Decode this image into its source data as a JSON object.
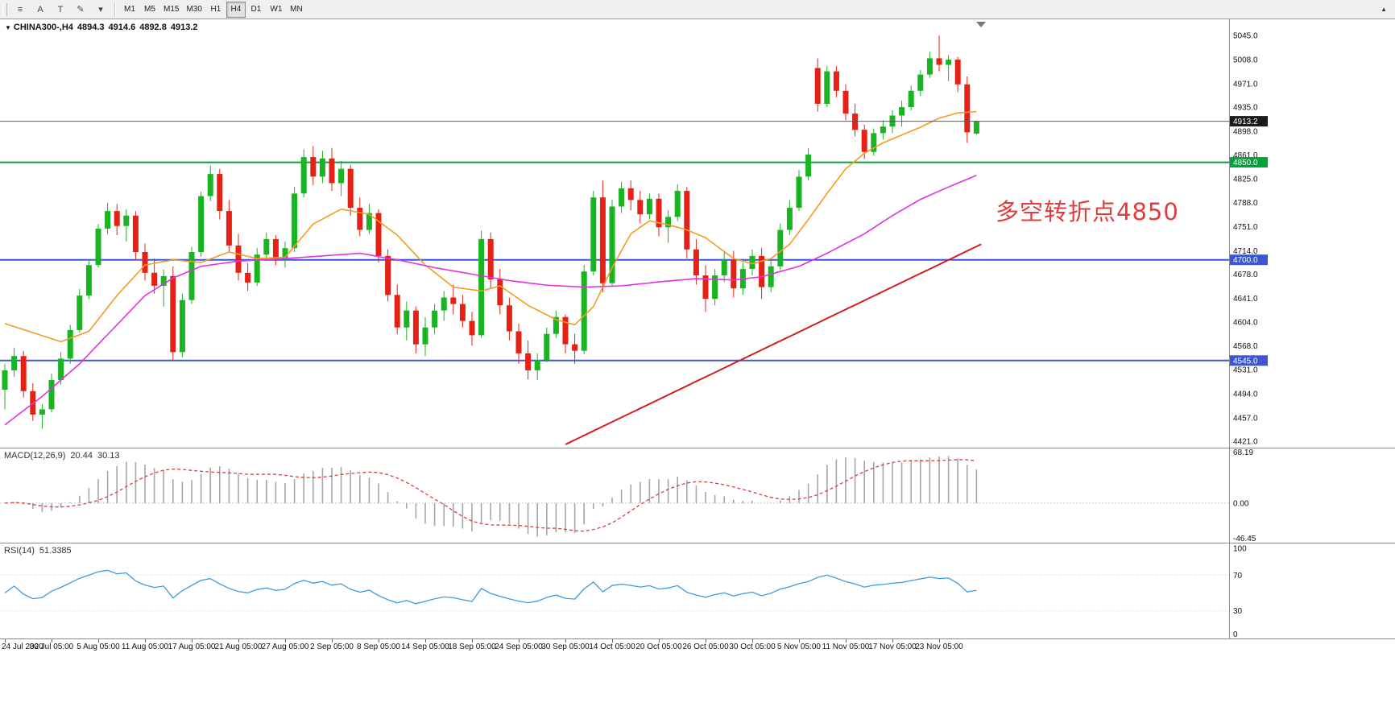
{
  "toolbar": {
    "left_icons": [
      {
        "name": "chart-list-icon",
        "glyph": "≡"
      },
      {
        "name": "cursor-a-icon",
        "glyph": "A"
      },
      {
        "name": "text-tool-icon",
        "glyph": "T"
      },
      {
        "name": "draw-tool-icon",
        "glyph": "✎"
      },
      {
        "name": "dropdown-caret-icon",
        "glyph": "▾"
      }
    ],
    "timeframes": [
      "M1",
      "M5",
      "M15",
      "M30",
      "H1",
      "H4",
      "D1",
      "W1",
      "MN"
    ],
    "active_timeframe": "H4",
    "corner_marker": "▲"
  },
  "chart": {
    "symbol_marker": "▼",
    "symbol_label": "CHINA300-,H4",
    "open": "4894.3",
    "high": "4914.6",
    "low": "4892.8",
    "close": "4913.2",
    "annotation": {
      "text": "多空转折点4850",
      "color": "#e23b3b"
    }
  },
  "macd_panel": {
    "label": "MACD(12,26,9)",
    "value_main": "20.44",
    "value_signal": "30.13",
    "ticks": [
      "68.19",
      "0.00",
      "-46.45"
    ]
  },
  "rsi_panel": {
    "label": "RSI(14)",
    "value": "51.3385",
    "ticks": [
      "100",
      "70",
      "30",
      "0"
    ]
  },
  "chart_data": {
    "type": "candlestick",
    "symbol": "CHINA300",
    "timeframe": "H4",
    "price_axis": {
      "render_min": 4411,
      "render_max": 5070,
      "ticks": [
        5045.0,
        5008.0,
        4971.0,
        4935.0,
        4898.0,
        4861.0,
        4825.0,
        4788.0,
        4751.0,
        4714.0,
        4678.0,
        4641.0,
        4604.0,
        4568.0,
        4531.0,
        4494.0,
        4457.0,
        4421.0
      ]
    },
    "time_labels": [
      "24 Jul 2020",
      "30 Jul 05:00",
      "5 Aug 05:00",
      "11 Aug 05:00",
      "17 Aug 05:00",
      "21 Aug 05:00",
      "27 Aug 05:00",
      "2 Sep 05:00",
      "8 Sep 05:00",
      "14 Sep 05:00",
      "18 Sep 05:00",
      "24 Sep 05:00",
      "30 Sep 05:00",
      "14 Oct 05:00",
      "20 Oct 05:00",
      "26 Oct 05:00",
      "30 Oct 05:00",
      "5 Nov 05:00",
      "11 Nov 05:00",
      "17 Nov 05:00",
      "23 Nov 05:00"
    ],
    "candles_per_label": 5,
    "candles": [
      [
        4500,
        4540,
        4470,
        4530
      ],
      [
        4530,
        4565,
        4520,
        4552
      ],
      [
        4552,
        4560,
        4488,
        4498
      ],
      [
        4498,
        4510,
        4452,
        4462
      ],
      [
        4462,
        4478,
        4440,
        4470
      ],
      [
        4470,
        4525,
        4465,
        4515
      ],
      [
        4515,
        4558,
        4508,
        4548
      ],
      [
        4548,
        4600,
        4540,
        4592
      ],
      [
        4592,
        4655,
        4588,
        4645
      ],
      [
        4645,
        4700,
        4640,
        4692
      ],
      [
        4692,
        4755,
        4688,
        4748
      ],
      [
        4748,
        4788,
        4740,
        4775
      ],
      [
        4775,
        4786,
        4738,
        4752
      ],
      [
        4752,
        4778,
        4728,
        4768
      ],
      [
        4768,
        4775,
        4700,
        4712
      ],
      [
        4712,
        4725,
        4668,
        4680
      ],
      [
        4680,
        4702,
        4648,
        4660
      ],
      [
        4660,
        4685,
        4628,
        4675
      ],
      [
        4675,
        4690,
        4545,
        4558
      ],
      [
        4558,
        4648,
        4550,
        4638
      ],
      [
        4638,
        4720,
        4632,
        4712
      ],
      [
        4712,
        4805,
        4705,
        4798
      ],
      [
        4798,
        4845,
        4790,
        4832
      ],
      [
        4832,
        4840,
        4762,
        4775
      ],
      [
        4775,
        4792,
        4712,
        4722
      ],
      [
        4722,
        4740,
        4668,
        4680
      ],
      [
        4680,
        4695,
        4652,
        4665
      ],
      [
        4665,
        4718,
        4660,
        4708
      ],
      [
        4708,
        4742,
        4698,
        4732
      ],
      [
        4732,
        4738,
        4692,
        4702
      ],
      [
        4702,
        4728,
        4688,
        4718
      ],
      [
        4718,
        4812,
        4712,
        4802
      ],
      [
        4802,
        4870,
        4796,
        4858
      ],
      [
        4858,
        4875,
        4815,
        4828
      ],
      [
        4828,
        4868,
        4818,
        4856
      ],
      [
        4856,
        4872,
        4806,
        4818
      ],
      [
        4818,
        4852,
        4798,
        4840
      ],
      [
        4840,
        4846,
        4768,
        4780
      ],
      [
        4780,
        4796,
        4736,
        4746
      ],
      [
        4746,
        4786,
        4740,
        4772
      ],
      [
        4772,
        4778,
        4696,
        4706
      ],
      [
        4706,
        4716,
        4636,
        4646
      ],
      [
        4646,
        4662,
        4586,
        4596
      ],
      [
        4596,
        4636,
        4576,
        4622
      ],
      [
        4622,
        4628,
        4556,
        4570
      ],
      [
        4570,
        4612,
        4552,
        4596
      ],
      [
        4596,
        4632,
        4586,
        4622
      ],
      [
        4622,
        4652,
        4606,
        4642
      ],
      [
        4642,
        4662,
        4616,
        4632
      ],
      [
        4632,
        4646,
        4596,
        4606
      ],
      [
        4606,
        4620,
        4568,
        4584
      ],
      [
        4584,
        4745,
        4580,
        4732
      ],
      [
        4732,
        4742,
        4656,
        4670
      ],
      [
        4670,
        4686,
        4616,
        4630
      ],
      [
        4630,
        4642,
        4576,
        4590
      ],
      [
        4590,
        4602,
        4540,
        4556
      ],
      [
        4556,
        4576,
        4516,
        4530
      ],
      [
        4530,
        4556,
        4515,
        4546
      ],
      [
        4546,
        4596,
        4542,
        4586
      ],
      [
        4586,
        4622,
        4580,
        4612
      ],
      [
        4612,
        4616,
        4556,
        4570
      ],
      [
        4570,
        4586,
        4540,
        4560
      ],
      [
        4560,
        4692,
        4555,
        4682
      ],
      [
        4682,
        4806,
        4676,
        4796
      ],
      [
        4796,
        4822,
        4650,
        4664
      ],
      [
        4664,
        4792,
        4660,
        4782
      ],
      [
        4782,
        4820,
        4772,
        4810
      ],
      [
        4810,
        4822,
        4776,
        4792
      ],
      [
        4792,
        4806,
        4756,
        4770
      ],
      [
        4770,
        4802,
        4762,
        4794
      ],
      [
        4794,
        4802,
        4736,
        4750
      ],
      [
        4750,
        4776,
        4726,
        4766
      ],
      [
        4766,
        4816,
        4760,
        4806
      ],
      [
        4806,
        4812,
        4702,
        4716
      ],
      [
        4716,
        4732,
        4662,
        4676
      ],
      [
        4676,
        4692,
        4620,
        4640
      ],
      [
        4640,
        4686,
        4630,
        4676
      ],
      [
        4676,
        4712,
        4666,
        4700
      ],
      [
        4700,
        4714,
        4642,
        4656
      ],
      [
        4656,
        4696,
        4646,
        4686
      ],
      [
        4686,
        4716,
        4676,
        4706
      ],
      [
        4706,
        4718,
        4640,
        4658
      ],
      [
        4658,
        4700,
        4650,
        4690
      ],
      [
        4690,
        4756,
        4684,
        4746
      ],
      [
        4746,
        4792,
        4738,
        4780
      ],
      [
        4780,
        4838,
        4775,
        4828
      ],
      [
        4828,
        4872,
        4822,
        4862
      ],
      [
        4995,
        5010,
        4928,
        4940
      ],
      [
        4940,
        4998,
        4935,
        4990
      ],
      [
        4990,
        4998,
        4950,
        4960
      ],
      [
        4960,
        4970,
        4915,
        4925
      ],
      [
        4925,
        4940,
        4890,
        4900
      ],
      [
        4900,
        4908,
        4855,
        4866
      ],
      [
        4866,
        4902,
        4860,
        4895
      ],
      [
        4895,
        4915,
        4885,
        4905
      ],
      [
        4905,
        4930,
        4895,
        4922
      ],
      [
        4922,
        4945,
        4905,
        4935
      ],
      [
        4935,
        4968,
        4930,
        4960
      ],
      [
        4960,
        4992,
        4952,
        4985
      ],
      [
        4985,
        5020,
        4980,
        5010
      ],
      [
        5010,
        5045,
        4990,
        5000
      ],
      [
        5000,
        5015,
        4975,
        5008
      ],
      [
        5008,
        5012,
        4958,
        4970
      ],
      [
        4970,
        4982,
        4880,
        4896
      ],
      [
        4894.3,
        4914.6,
        4892.8,
        4913.2
      ]
    ],
    "levels": [
      {
        "price": 4913.2,
        "label": "4913.2",
        "color": "#5a5a5a",
        "badge": "#1b1b1b",
        "width": 1,
        "z": "top"
      },
      {
        "price": 4850.0,
        "label": "4850.0",
        "color": "#00a33c",
        "badge": "#00a33c",
        "width": 2,
        "z": "bottom"
      },
      {
        "price": 4700.0,
        "label": "4700.0",
        "color": "#3a57d7",
        "badge": "#3a57d7",
        "width": 2,
        "z": "bottom"
      },
      {
        "price": 4545.0,
        "label": "4545.0",
        "color": "#3a57d7",
        "badge": "#3a57d7",
        "width": 2,
        "z": "bottom"
      }
    ],
    "overlays": {
      "ma_fast_points": [
        [
          0,
          4602
        ],
        [
          3,
          4588
        ],
        [
          6,
          4574
        ],
        [
          9,
          4590
        ],
        [
          12,
          4645
        ],
        [
          15,
          4692
        ],
        [
          18,
          4700
        ],
        [
          21,
          4696
        ],
        [
          24,
          4712
        ],
        [
          27,
          4702
        ],
        [
          30,
          4704
        ],
        [
          33,
          4755
        ],
        [
          36,
          4778
        ],
        [
          39,
          4770
        ],
        [
          42,
          4738
        ],
        [
          45,
          4692
        ],
        [
          48,
          4658
        ],
        [
          51,
          4652
        ],
        [
          53,
          4660
        ],
        [
          56,
          4630
        ],
        [
          59,
          4608
        ],
        [
          61,
          4600
        ],
        [
          63,
          4628
        ],
        [
          65,
          4688
        ],
        [
          67,
          4740
        ],
        [
          69,
          4760
        ],
        [
          71,
          4754
        ],
        [
          73,
          4746
        ],
        [
          75,
          4734
        ],
        [
          78,
          4702
        ],
        [
          80,
          4694
        ],
        [
          82,
          4702
        ],
        [
          84,
          4724
        ],
        [
          86,
          4762
        ],
        [
          88,
          4802
        ],
        [
          90,
          4840
        ],
        [
          92,
          4864
        ],
        [
          94,
          4880
        ],
        [
          96,
          4892
        ],
        [
          98,
          4904
        ],
        [
          100,
          4918
        ],
        [
          102,
          4926
        ],
        [
          104,
          4928
        ]
      ],
      "ma_slow_points": [
        [
          0,
          4446
        ],
        [
          4,
          4490
        ],
        [
          8,
          4540
        ],
        [
          12,
          4600
        ],
        [
          15,
          4645
        ],
        [
          18,
          4672
        ],
        [
          21,
          4690
        ],
        [
          25,
          4698
        ],
        [
          30,
          4702
        ],
        [
          34,
          4706
        ],
        [
          38,
          4710
        ],
        [
          42,
          4700
        ],
        [
          46,
          4688
        ],
        [
          50,
          4678
        ],
        [
          54,
          4668
        ],
        [
          58,
          4661
        ],
        [
          62,
          4658
        ],
        [
          66,
          4660
        ],
        [
          70,
          4666
        ],
        [
          74,
          4671
        ],
        [
          78,
          4669
        ],
        [
          81,
          4674
        ],
        [
          85,
          4690
        ],
        [
          88,
          4710
        ],
        [
          92,
          4740
        ],
        [
          95,
          4768
        ],
        [
          98,
          4793
        ],
        [
          101,
          4812
        ],
        [
          104,
          4830
        ]
      ],
      "trendline_points": [
        [
          60,
          4416
        ],
        [
          104.5,
          4724
        ]
      ]
    },
    "macd": {
      "range": [
        -52,
        72
      ],
      "tick_values": [
        68.19,
        0,
        -46.45
      ]
    },
    "rsi": {
      "levels": [
        100,
        70,
        30,
        0
      ]
    },
    "colors": {
      "up": "#18b422",
      "down": "#e42114",
      "ma_fast": "#f59a23",
      "ma_slow": "#e233e2",
      "trend": "#d02020",
      "macd_hist": "#a6a6a6",
      "macd_signal": "#d43f3f",
      "rsi": "#3e9ade",
      "level_green": "#00a33c",
      "level_blue": "#3a57d7",
      "last_price": "#5a5a5a"
    }
  }
}
